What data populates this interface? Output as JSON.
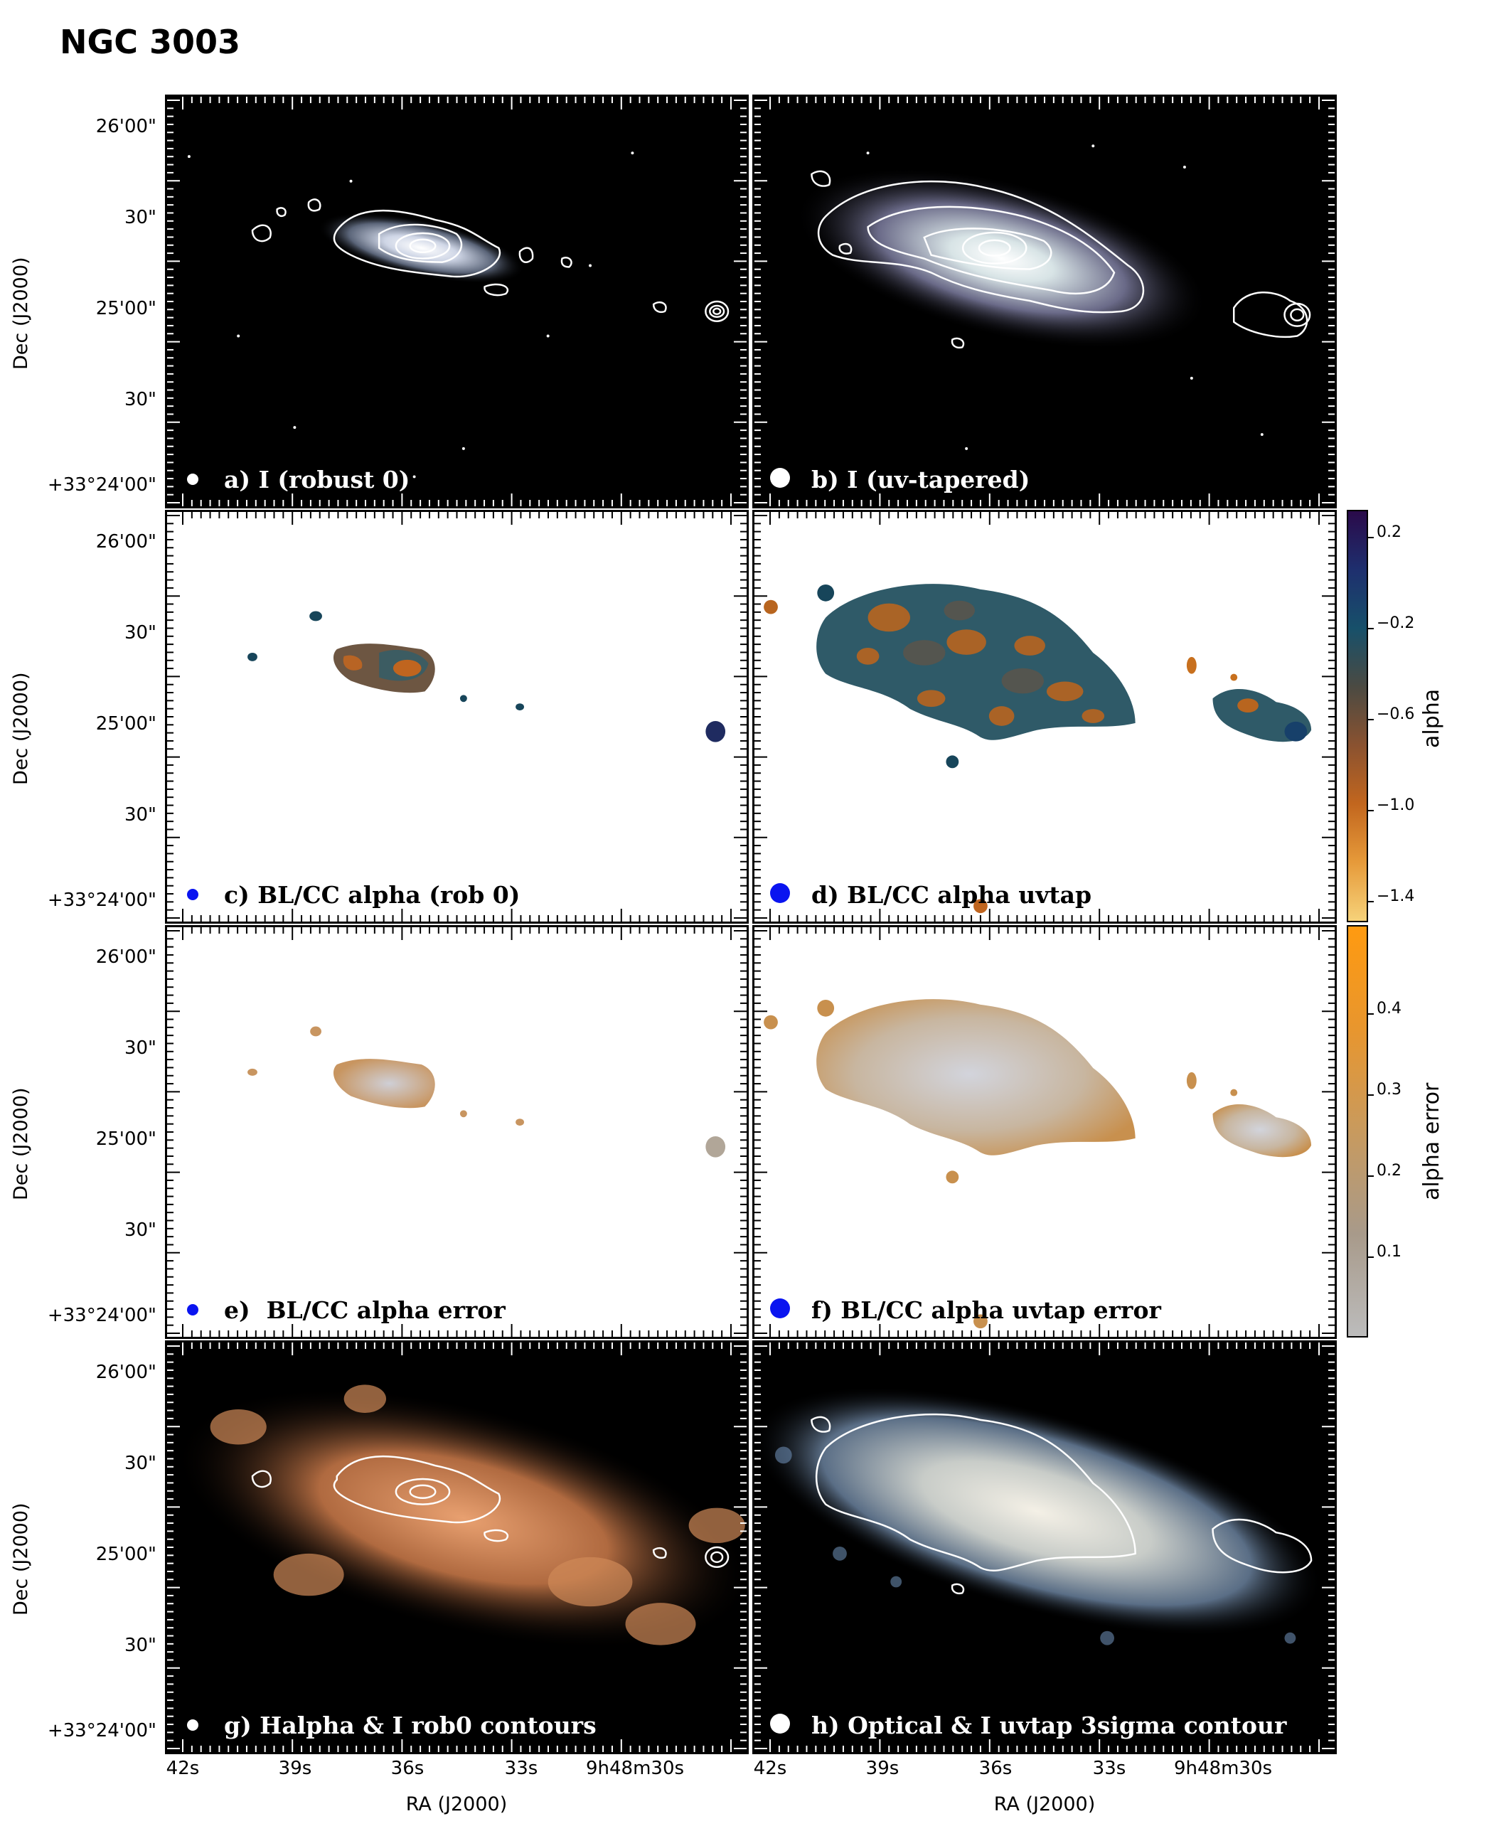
{
  "title": "NGC 3003",
  "axes": {
    "ylabel": "Dec (J2000)",
    "xlabel": "RA (J2000)",
    "yticks": [
      "26'00\"",
      "30\"",
      "25'00\"",
      "30\"",
      "+33°24'00\""
    ],
    "xticks": [
      "42s",
      "39s",
      "36s",
      "33s",
      "9h48m30s"
    ]
  },
  "panels": [
    {
      "id": "a",
      "label": "a) I (robust 0)",
      "bg": "#000000",
      "beam_color": "#ffffff"
    },
    {
      "id": "b",
      "label": "b) I (uv-tapered)",
      "bg": "#000000",
      "beam_color": "#ffffff"
    },
    {
      "id": "c",
      "label": "c) BL/CC alpha (rob 0)",
      "bg": "#ffffff",
      "beam_color": "#0a14f0"
    },
    {
      "id": "d",
      "label": "d) BL/CC alpha uvtap",
      "bg": "#ffffff",
      "beam_color": "#0a14f0"
    },
    {
      "id": "e",
      "label": "e)  BL/CC alpha error",
      "bg": "#ffffff",
      "beam_color": "#0a14f0"
    },
    {
      "id": "f",
      "label": "f) BL/CC alpha uvtap error",
      "bg": "#ffffff",
      "beam_color": "#0a14f0"
    },
    {
      "id": "g",
      "label": "g) Halpha & I rob0 contours",
      "bg": "#000000",
      "beam_color": "#ffffff"
    },
    {
      "id": "h",
      "label": "h) Optical & I uvtap 3sigma contour",
      "bg": "#000000",
      "beam_color": "#ffffff"
    }
  ],
  "colorbars": [
    {
      "label": "alpha",
      "ticks": [
        "0.2",
        "−0.2",
        "−0.6",
        "−1.0",
        "−1.4"
      ],
      "colors": [
        "#2a0a4a",
        "#1e2f6e",
        "#17506a",
        "#4b4a42",
        "#8a5230",
        "#c2661e",
        "#e69a3a",
        "#f6d27a"
      ]
    },
    {
      "label": "alpha error",
      "ticks": [
        "0.4",
        "0.3",
        "0.2",
        "0.1"
      ],
      "colors": [
        "#ff9a10",
        "#e8962e",
        "#c89a5e",
        "#a89a8a",
        "#bcbcbc"
      ]
    }
  ]
}
